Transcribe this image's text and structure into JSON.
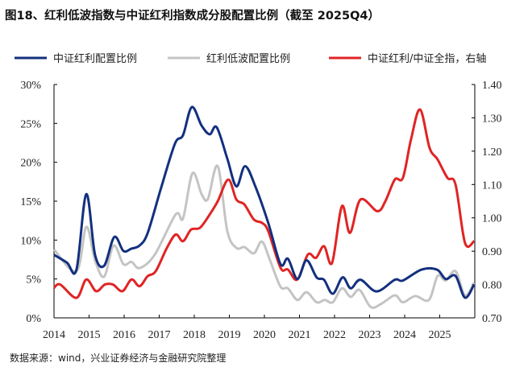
{
  "title": "图18、红利低波指数与中证红利指数成分股配置比例（截至 2025Q4）",
  "source": "数据来源：wind，兴业证券经济与金融研究院整理",
  "chart_data": {
    "type": "line",
    "x_label_ticks": [
      "2014",
      "2015",
      "2016",
      "2017",
      "2018",
      "2019",
      "2020",
      "2021",
      "2022",
      "2023",
      "2024",
      "2025"
    ],
    "xlim": [
      2014,
      2026
    ],
    "y_left": {
      "ticks": [
        "0%",
        "5%",
        "10%",
        "15%",
        "20%",
        "25%",
        "30%"
      ],
      "ylim": [
        0,
        30
      ],
      "unit": "%"
    },
    "y_right": {
      "ticks": [
        "0.70",
        "0.80",
        "0.90",
        "1.00",
        "1.10",
        "1.20",
        "1.30",
        "1.40"
      ],
      "ylim": [
        0.7,
        1.4
      ]
    },
    "legend_position": "top",
    "grid": false,
    "series": [
      {
        "name": "中证红利配置比例",
        "axis": "left",
        "color": "#13307f",
        "x": [
          2014.0,
          2014.37,
          2014.64,
          2014.92,
          2015.17,
          2015.43,
          2015.72,
          2015.98,
          2016.21,
          2016.44,
          2016.67,
          2017.06,
          2017.45,
          2017.68,
          2017.93,
          2018.21,
          2018.44,
          2018.64,
          2018.94,
          2019.2,
          2019.45,
          2019.75,
          2020.11,
          2020.46,
          2020.67,
          2020.94,
          2021.2,
          2021.49,
          2021.7,
          2021.95,
          2022.23,
          2022.46,
          2022.74,
          2023.2,
          2023.72,
          2023.95,
          2024.48,
          2024.92,
          2025.17,
          2025.45,
          2025.72,
          2025.98
        ],
        "values": [
          8.1,
          7.1,
          6.2,
          15.9,
          8.1,
          6.7,
          10.4,
          8.6,
          8.9,
          9.3,
          10.9,
          16.8,
          22.4,
          23.5,
          27.1,
          24.7,
          23.6,
          24.5,
          20.5,
          16.9,
          19.5,
          16.8,
          12.2,
          6.9,
          7.6,
          5.0,
          7.4,
          5.2,
          4.9,
          3.1,
          5.2,
          3.8,
          4.9,
          3.4,
          4.9,
          4.8,
          6.2,
          6.2,
          5.0,
          5.4,
          2.6,
          4.3
        ]
      },
      {
        "name": "红利低波配置比例",
        "axis": "left",
        "color": "#c4c4c4",
        "x": [
          2014.0,
          2014.64,
          2014.92,
          2015.17,
          2015.43,
          2015.7,
          2015.98,
          2016.21,
          2016.44,
          2016.87,
          2017.47,
          2017.68,
          2017.95,
          2018.21,
          2018.39,
          2018.67,
          2018.94,
          2019.2,
          2019.43,
          2019.7,
          2019.93,
          2020.16,
          2020.46,
          2020.67,
          2020.94,
          2021.2,
          2021.49,
          2021.72,
          2021.95,
          2022.21,
          2022.46,
          2022.71,
          2023.03,
          2023.33,
          2023.72,
          2023.95,
          2024.3,
          2024.69,
          2024.94,
          2025.17,
          2025.45,
          2025.72,
          2025.98
        ],
        "values": [
          8.8,
          6.0,
          11.7,
          7.4,
          5.3,
          9.3,
          6.9,
          7.2,
          6.4,
          8.1,
          13.3,
          12.8,
          18.6,
          15.9,
          15.3,
          19.5,
          11.2,
          9.0,
          9.1,
          8.3,
          9.8,
          7.4,
          4.0,
          3.8,
          2.3,
          3.3,
          2.0,
          2.3,
          2.0,
          3.8,
          2.7,
          3.6,
          1.4,
          1.8,
          2.9,
          2.0,
          2.8,
          2.3,
          5.4,
          4.8,
          6.0,
          2.9,
          4.5
        ]
      },
      {
        "name": "中证红利/中证全指，右轴",
        "axis": "right",
        "color": "#e02424",
        "x": [
          2014.0,
          2014.18,
          2014.64,
          2014.92,
          2015.2,
          2015.45,
          2015.68,
          2015.95,
          2016.21,
          2016.44,
          2016.67,
          2016.9,
          2017.22,
          2017.47,
          2017.68,
          2017.91,
          2018.16,
          2018.44,
          2018.67,
          2018.97,
          2019.2,
          2019.43,
          2019.7,
          2019.93,
          2020.11,
          2020.46,
          2020.67,
          2020.94,
          2021.24,
          2021.47,
          2021.7,
          2021.93,
          2022.21,
          2022.44,
          2022.74,
          2023.22,
          2023.45,
          2023.72,
          2023.95,
          2024.18,
          2024.44,
          2024.71,
          2024.94,
          2025.22,
          2025.45,
          2025.72,
          2025.98
        ],
        "values": [
          0.79,
          0.8,
          0.76,
          0.815,
          0.78,
          0.8,
          0.8,
          0.78,
          0.815,
          0.795,
          0.825,
          0.84,
          0.91,
          0.95,
          0.93,
          0.965,
          0.97,
          1.01,
          1.05,
          1.115,
          1.055,
          1.04,
          0.995,
          0.985,
          0.96,
          0.85,
          0.845,
          0.815,
          0.89,
          0.88,
          0.915,
          0.865,
          1.035,
          0.955,
          1.055,
          1.02,
          1.05,
          1.115,
          1.12,
          1.235,
          1.325,
          1.21,
          1.175,
          1.12,
          1.1,
          0.925,
          0.93
        ]
      }
    ]
  }
}
